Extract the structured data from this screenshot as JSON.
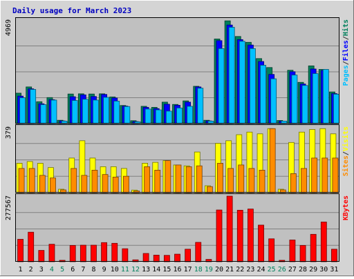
{
  "chart_data": {
    "type": "bar",
    "title": "Daily usage for March 2023",
    "days": [
      "1",
      "2",
      "3",
      "4",
      "5",
      "6",
      "7",
      "8",
      "9",
      "10",
      "11",
      "12",
      "13",
      "14",
      "15",
      "16",
      "17",
      "18",
      "19",
      "20",
      "21",
      "22",
      "23",
      "24",
      "25",
      "26",
      "27",
      "28",
      "29",
      "30",
      "31"
    ],
    "weekend_days": [
      "4",
      "5",
      "11",
      "12",
      "18",
      "19",
      "25",
      "26"
    ],
    "panels": [
      {
        "name": "top",
        "max_label": "4969",
        "ymax": 4969,
        "right_label": [
          "Pages",
          "/",
          "Files",
          "/",
          "Hits"
        ],
        "right_label_colors": [
          "#00c0ff",
          "#333333",
          "#0000ff",
          "#333333",
          "#00805c"
        ],
        "series": [
          {
            "name": "Hits",
            "color": "#00805c",
            "values": [
              1460,
              1760,
              1050,
              1250,
              160,
              1420,
              1430,
              1420,
              1430,
              1280,
              870,
              140,
              830,
              780,
              1030,
              920,
              1090,
              1790,
              160,
              4060,
              4930,
              4180,
              3900,
              3120,
              2690,
              150,
              2560,
              1980,
              2770,
              2600,
              1520
            ]
          },
          {
            "name": "Files",
            "color": "#0000ff",
            "values": [
              1320,
              1670,
              950,
              1150,
              130,
              1290,
              1380,
              1300,
              1400,
              1230,
              840,
              100,
              780,
              720,
              930,
              880,
              1030,
              1760,
              130,
              3980,
              4730,
              4030,
              3770,
              2980,
              2360,
              120,
              2490,
              1900,
              2620,
              2550,
              1440
            ]
          },
          {
            "name": "Pages",
            "color": "#00c0ff",
            "values": [
              1240,
              1640,
              910,
              1130,
              120,
              1110,
              1170,
              1130,
              1260,
              1080,
              820,
              90,
              700,
              660,
              600,
              750,
              830,
              1700,
              120,
              3600,
              4620,
              3950,
              3600,
              2800,
              2150,
              120,
              2330,
              1830,
              2400,
              2600,
              1410
            ]
          }
        ]
      },
      {
        "name": "middle",
        "max_label": "379",
        "ymax": 379,
        "right_label": [
          "Sites",
          "/",
          "Visits"
        ],
        "right_label_colors": [
          "#ff8c00",
          "#333333",
          "#ffff00"
        ],
        "series": [
          {
            "name": "Visits",
            "color": "#ffff00",
            "values": [
              170,
              180,
              170,
              145,
              20,
              200,
              300,
              200,
              150,
              150,
              140,
              15,
              170,
              175,
              185,
              160,
              155,
              235,
              40,
              285,
              300,
              335,
              350,
              340,
              370,
              20,
              290,
              350,
              365,
              370,
              340
            ]
          },
          {
            "name": "Sites",
            "color": "#ff8c00",
            "values": [
              140,
              140,
              100,
              85,
              16,
              140,
              100,
              130,
              105,
              90,
              95,
              10,
              150,
              130,
              185,
              160,
              150,
              155,
              35,
              170,
              140,
              160,
              140,
              130,
              370,
              16,
              110,
              140,
              200,
              200,
              200
            ]
          }
        ]
      },
      {
        "name": "bottom",
        "max_label": "277567",
        "ymax": 277567,
        "right_label": [
          "KBytes"
        ],
        "right_label_colors": [
          "#ff0000"
        ],
        "series": [
          {
            "name": "KBytes",
            "color": "#ff0000",
            "values": [
              95000,
              125000,
              48000,
              74000,
              6000,
              69000,
              70000,
              70000,
              81000,
              78000,
              55000,
              8000,
              35000,
              28000,
              27000,
              32000,
              53000,
              82000,
              10000,
              219000,
              277567,
              218000,
              223000,
              155000,
              97000,
              6000,
              92000,
              69000,
              116000,
              168000,
              53000
            ]
          }
        ]
      }
    ]
  }
}
